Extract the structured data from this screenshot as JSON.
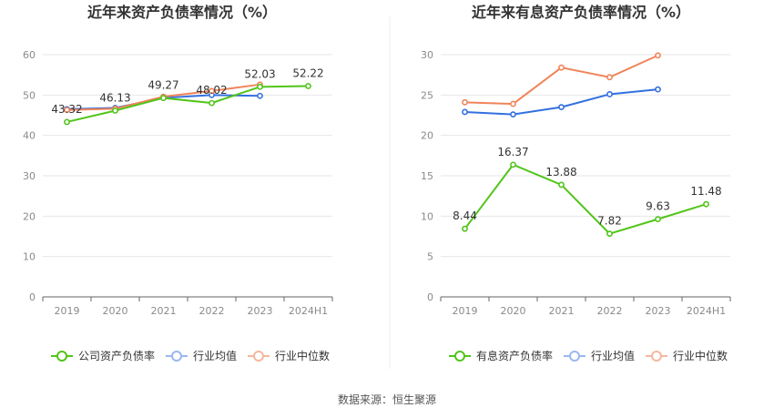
{
  "source_text": "数据来源：恒生聚源",
  "chart_data": [
    {
      "type": "line",
      "title": "近年来资产负债率情况（%）",
      "categories": [
        "2019",
        "2020",
        "2021",
        "2022",
        "2023",
        "2024H1"
      ],
      "ylim": [
        0,
        60
      ],
      "yticks": [
        0,
        10,
        20,
        30,
        40,
        50,
        60
      ],
      "grid": true,
      "legend_position": "bottom",
      "series": [
        {
          "name": "公司资产负债率",
          "color": "#52c41a",
          "values": [
            43.32,
            46.13,
            49.27,
            48.02,
            52.03,
            52.22
          ],
          "labels": [
            "43.32",
            "46.13",
            "49.27",
            "48.02",
            "52.03",
            "52.22"
          ]
        },
        {
          "name": "行业均值",
          "color": "#3370e0",
          "values": [
            46.5,
            46.8,
            49.3,
            50.0,
            49.8,
            null
          ]
        },
        {
          "name": "行业中位数",
          "color": "#f0845a",
          "values": [
            46.3,
            46.6,
            49.6,
            51.0,
            52.6,
            null
          ]
        }
      ]
    },
    {
      "type": "line",
      "title": "近年来有息资产负债率情况（%）",
      "categories": [
        "2019",
        "2020",
        "2021",
        "2022",
        "2023",
        "2024H1"
      ],
      "ylim": [
        0,
        30
      ],
      "yticks": [
        0,
        5,
        10,
        15,
        20,
        25,
        30
      ],
      "grid": true,
      "legend_position": "bottom",
      "series": [
        {
          "name": "有息资产负债率",
          "color": "#52c41a",
          "values": [
            8.44,
            16.37,
            13.88,
            7.82,
            9.63,
            11.48
          ],
          "labels": [
            "8.44",
            "16.37",
            "13.88",
            "7.82",
            "9.63",
            "11.48"
          ]
        },
        {
          "name": "行业均值",
          "color": "#3370e0",
          "values": [
            22.9,
            22.6,
            23.5,
            25.1,
            25.7,
            null
          ]
        },
        {
          "name": "行业中位数",
          "color": "#f0845a",
          "values": [
            24.1,
            23.9,
            28.4,
            27.2,
            29.9,
            null
          ]
        }
      ]
    }
  ]
}
